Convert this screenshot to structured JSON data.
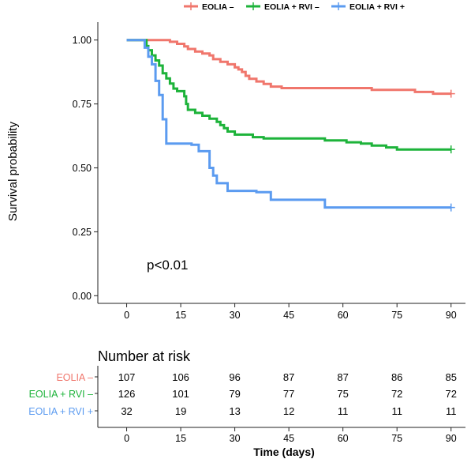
{
  "chart_data": {
    "type": "line",
    "xlabel": "Time (days)",
    "ylabel": "Survival probability",
    "xlim": [
      -8,
      94
    ],
    "ylim": [
      -0.03,
      1.07
    ],
    "x_ticks": [
      "0",
      "15",
      "30",
      "45",
      "60",
      "75",
      "90"
    ],
    "y_ticks": [
      "0.00",
      "0.25",
      "0.50",
      "0.75",
      "1.00"
    ],
    "grid": false,
    "legend_position": "top",
    "annotation": "p<0.01",
    "series": [
      {
        "name": "EOLIA –",
        "color": "#F0766C",
        "points": [
          [
            0,
            1.0
          ],
          [
            5,
            1.0
          ],
          [
            12,
            0.993
          ],
          [
            14,
            0.985
          ],
          [
            16,
            0.975
          ],
          [
            17,
            0.965
          ],
          [
            19,
            0.955
          ],
          [
            21,
            0.947
          ],
          [
            23,
            0.94
          ],
          [
            24,
            0.925
          ],
          [
            26,
            0.915
          ],
          [
            28,
            0.905
          ],
          [
            30,
            0.893
          ],
          [
            31,
            0.885
          ],
          [
            32,
            0.875
          ],
          [
            33,
            0.86
          ],
          [
            34,
            0.848
          ],
          [
            36,
            0.838
          ],
          [
            38,
            0.828
          ],
          [
            40,
            0.818
          ],
          [
            43,
            0.812
          ],
          [
            60,
            0.812
          ],
          [
            68,
            0.805
          ],
          [
            80,
            0.797
          ],
          [
            85,
            0.79
          ],
          [
            90,
            0.79
          ]
        ]
      },
      {
        "name": "EOLIA + RVI –",
        "color": "#1DB33A",
        "points": [
          [
            0,
            1.0
          ],
          [
            5,
            1.0
          ],
          [
            5.5,
            0.976
          ],
          [
            6,
            0.96
          ],
          [
            7,
            0.94
          ],
          [
            8,
            0.92
          ],
          [
            9,
            0.9
          ],
          [
            10,
            0.87
          ],
          [
            11,
            0.85
          ],
          [
            12,
            0.83
          ],
          [
            13,
            0.81
          ],
          [
            14,
            0.8
          ],
          [
            16,
            0.78
          ],
          [
            16.5,
            0.75
          ],
          [
            17,
            0.727
          ],
          [
            19,
            0.715
          ],
          [
            21,
            0.704
          ],
          [
            23,
            0.692
          ],
          [
            25,
            0.68
          ],
          [
            26,
            0.667
          ],
          [
            27,
            0.655
          ],
          [
            28,
            0.642
          ],
          [
            30,
            0.63
          ],
          [
            35,
            0.62
          ],
          [
            38,
            0.615
          ],
          [
            55,
            0.607
          ],
          [
            61,
            0.6
          ],
          [
            65,
            0.595
          ],
          [
            68,
            0.587
          ],
          [
            72,
            0.58
          ],
          [
            75,
            0.572
          ],
          [
            90,
            0.572
          ]
        ]
      },
      {
        "name": "EOLIA + RVI +",
        "color": "#5B9BF0",
        "points": [
          [
            0,
            1.0
          ],
          [
            4.5,
            1.0
          ],
          [
            5,
            0.97
          ],
          [
            6,
            0.935
          ],
          [
            7,
            0.905
          ],
          [
            8,
            0.84
          ],
          [
            9,
            0.785
          ],
          [
            10,
            0.69
          ],
          [
            11,
            0.595
          ],
          [
            18,
            0.59
          ],
          [
            20,
            0.565
          ],
          [
            23,
            0.5
          ],
          [
            24,
            0.47
          ],
          [
            25,
            0.44
          ],
          [
            28,
            0.41
          ],
          [
            36,
            0.405
          ],
          [
            40,
            0.375
          ],
          [
            55,
            0.345
          ],
          [
            90,
            0.345
          ]
        ]
      }
    ]
  },
  "risk_table": {
    "title": "Number at risk",
    "rows": [
      {
        "label": "EOLIA –",
        "color": "#F0766C",
        "counts": [
          "107",
          "106",
          "96",
          "87",
          "87",
          "86",
          "85"
        ]
      },
      {
        "label": "EOLIA + RVI –",
        "color": "#1DB33A",
        "counts": [
          "126",
          "101",
          "79",
          "77",
          "75",
          "72",
          "72"
        ]
      },
      {
        "label": "EOLIA + RVI +",
        "color": "#5B9BF0",
        "counts": [
          "32",
          "19",
          "13",
          "12",
          "11",
          "11",
          "11"
        ]
      }
    ]
  }
}
